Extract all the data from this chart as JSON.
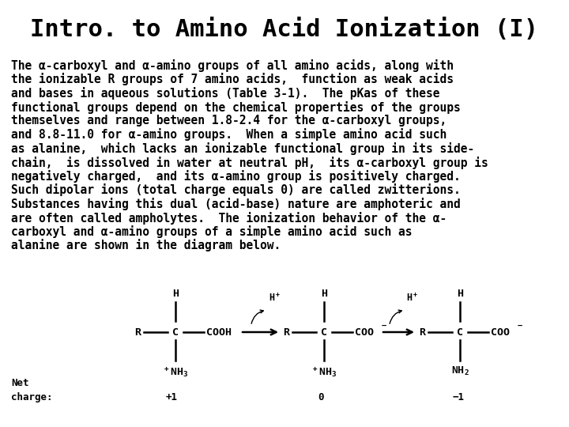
{
  "title": "Intro. to Amino Acid Ionization (I)",
  "title_fontsize": 22,
  "body_text_lines": [
    "The α-carboxyl and α-amino groups of all amino acids, along with",
    "the ionizable R groups of 7 amino acids,  function as weak acids",
    "and bases in aqueous solutions (Table 3-1).  The pKas of these",
    "functional groups depend on the chemical properties of the groups",
    "themselves and range between 1.8-2.4 for the α-carboxyl groups,",
    "and 8.8-11.0 for α-amino groups.  When a simple amino acid such",
    "as alanine,  which lacks an ionizable functional group in its side-",
    "chain,  is dissolved in water at neutral pH,  its α-carboxyl group is",
    "negatively charged,  and its α-amino group is positively charged.",
    "Such dipolar ions (total charge equals 0) are called zwitterions.",
    "Substances having this dual (acid-base) nature are amphoteric and",
    "are often called ampholytes.  The ionization behavior of the α-",
    "carboxyl and α-amino groups of a simple amino acid such as",
    "alanine are shown in the diagram below."
  ],
  "body_fontsize": 10.5,
  "bg_color": "#ffffff",
  "text_color": "#000000"
}
